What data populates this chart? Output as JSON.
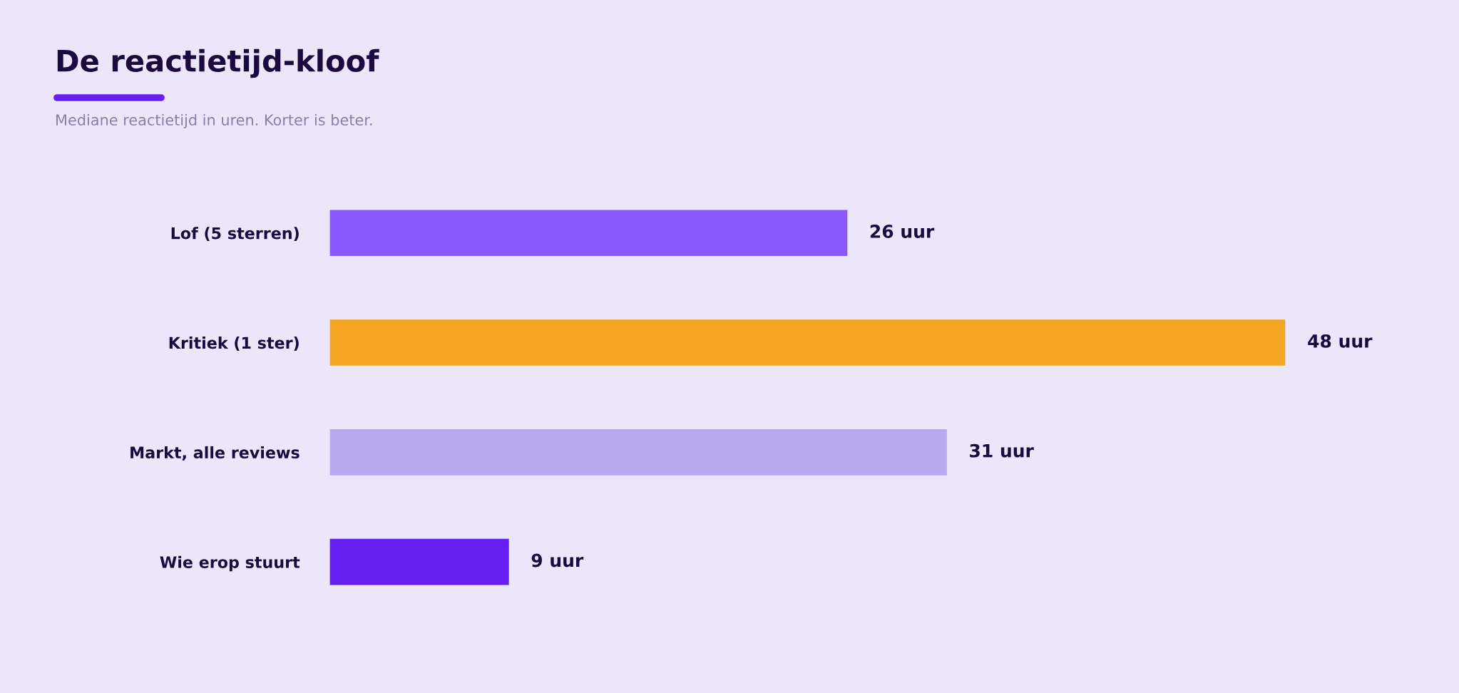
{
  "chart_data": {
    "type": "bar",
    "orientation": "horizontal",
    "title": "De reactietijd-kloof",
    "subtitle": "Mediane reactietijd in uren. Korter is beter.",
    "categories": [
      "Lof (5 sterren)",
      "Kritiek (1 ster)",
      "Markt, alle reviews",
      "Wie erop stuurt"
    ],
    "values": [
      26,
      48,
      31,
      9
    ],
    "colors": [
      "#8b57ff",
      "#f4a623",
      "#b9a9ee",
      "#651ff0"
    ],
    "value_labels": [
      "26 uur",
      "48 uur",
      "31 uur",
      "9 uur"
    ],
    "grid": false,
    "legend": false
  }
}
